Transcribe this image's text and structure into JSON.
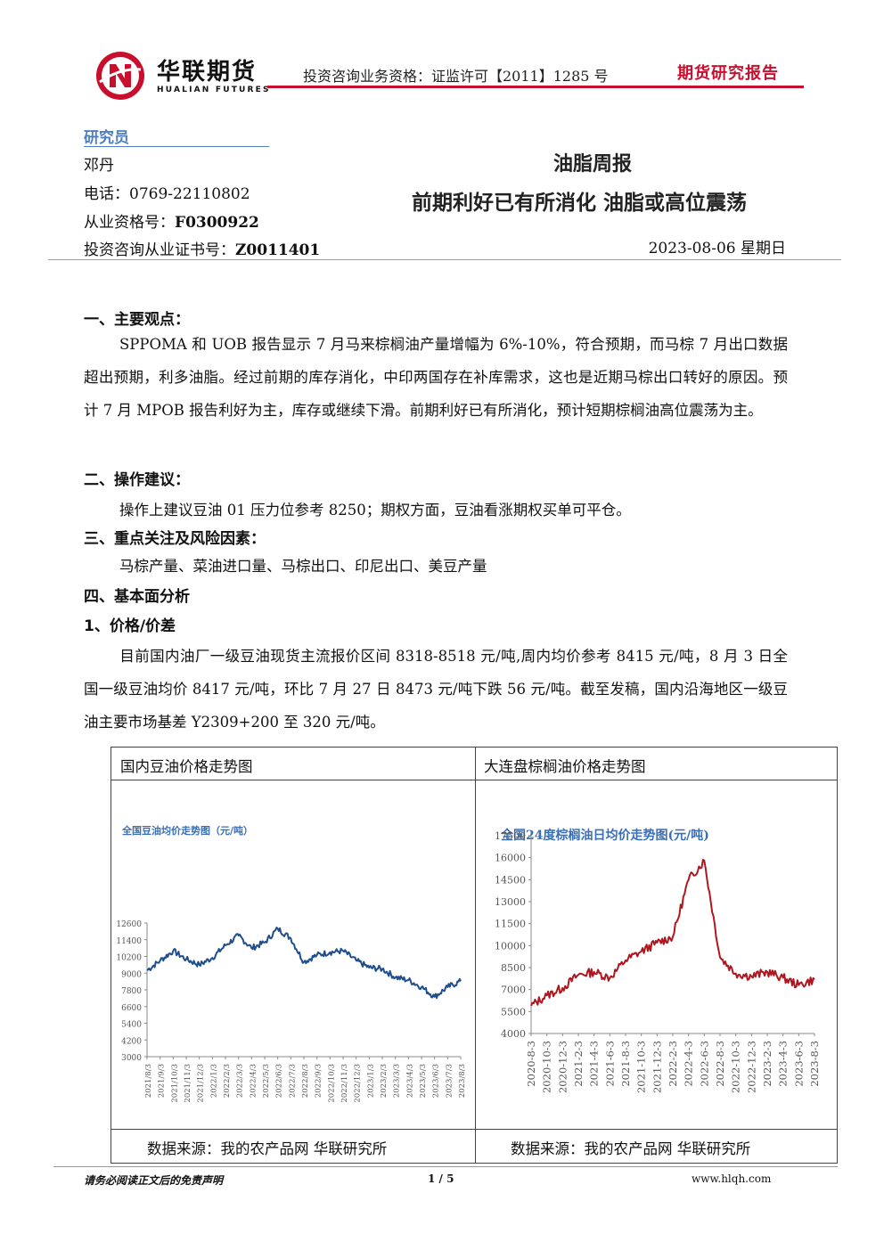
{
  "header": {
    "brand_cn": "华联期货",
    "brand_en": "HUALIAN FUTURES",
    "qualification": "投资咨询业务资格：证监许可【2011】1285 号",
    "report_type": "期货研究报告",
    "colors": {
      "accent": "#c8102e",
      "blue": "#4f7fc0"
    }
  },
  "researcher": {
    "label": "研究员",
    "name": "邓丹",
    "phone": "电话：0769-22110802",
    "license_label": "从业资格号：",
    "license_no": "F0300922",
    "advisory_label": "投资咨询从业证书号：",
    "advisory_no": "Z0011401"
  },
  "report": {
    "title": "油脂周报",
    "subtitle": "前期利好已有所消化  油脂或高位震荡",
    "date": "2023-08-06 星期日"
  },
  "sections": {
    "s1_title": "一、主要观点：",
    "s1_text": "SPPOMA 和 UOB 报告显示 7 月马来棕榈油产量增幅为 6%-10%，符合预期，而马棕 7 月出口数据超出预期，利多油脂。经过前期的库存消化，中印两国存在补库需求，这也是近期马棕出口转好的原因。预计 7 月 MPOB 报告利好为主，库存或继续下滑。前期利好已有所消化，预计短期棕榈油高位震荡为主。",
    "s2_title": "二、操作建议：",
    "s2_text": "操作上建议豆油 01 压力位参考 8250；期权方面，豆油看涨期权买单可平仓。",
    "s3_title": "三、重点关注及风险因素：",
    "s3_text": "马棕产量、菜油进口量、马棕出口、印尼出口、美豆产量",
    "s4_title": "四、基本面分析",
    "s4_sub": "1、价格/价差",
    "s4_text": "目前国内油厂一级豆油现货主流报价区间 8318-8518 元/吨,周内均价参考 8415 元/吨，8 月 3 日全国一级豆油均价 8417 元/吨，环比 7 月 27 日 8473 元/吨下跌 56 元/吨。截至发稿，国内沿海地区一级豆油主要市场基差 Y2309+200 至 320 元/吨。"
  },
  "charts": {
    "left_cell_title": "国内豆油价格走势图",
    "right_cell_title": "大连盘棕榈油价格走势图",
    "left_source": "数据来源：我的农产品网  华联研究所",
    "right_source": "数据来源：我的农产品网  华联研究所"
  },
  "chart_data": [
    {
      "type": "line",
      "title": "全国豆油均价走势图（元/吨）",
      "color": "#1f4e8c",
      "ylim": [
        3000,
        12600
      ],
      "yticks": [
        "12600",
        "11400",
        "10200",
        "9000",
        "7800",
        "6600",
        "5400",
        "4200",
        "3000"
      ],
      "xticks": [
        "2021/8/3",
        "2021/9/3",
        "2021/10/3",
        "2021/11/3",
        "2021/12/3",
        "2022/1/3",
        "2022/2/3",
        "2022/3/3",
        "2022/4/3",
        "2022/5/3",
        "2022/6/3",
        "2022/7/3",
        "2022/8/3",
        "2022/9/3",
        "2022/10/3",
        "2022/11/3",
        "2022/12/3",
        "2023/1/3",
        "2023/2/3",
        "2023/3/3",
        "2023/4/3",
        "2023/5/3",
        "2023/6/3",
        "2023/7/3",
        "2023/8/3"
      ],
      "x": [
        "2021/8/3",
        "2021/9/3",
        "2021/10/3",
        "2021/11/3",
        "2021/12/3",
        "2022/1/3",
        "2022/2/3",
        "2022/3/3",
        "2022/4/3",
        "2022/5/3",
        "2022/6/3",
        "2022/7/3",
        "2022/8/3",
        "2022/9/3",
        "2022/10/3",
        "2022/11/3",
        "2022/12/3",
        "2023/1/3",
        "2023/2/3",
        "2023/3/3",
        "2023/4/3",
        "2023/5/3",
        "2023/6/3",
        "2023/7/3",
        "2023/8/3"
      ],
      "values": [
        9200,
        9900,
        10600,
        10000,
        9600,
        10100,
        11000,
        11700,
        10800,
        11200,
        12200,
        11500,
        9800,
        10300,
        10500,
        10600,
        9900,
        9400,
        9300,
        8700,
        8500,
        8000,
        7300,
        8000,
        8417
      ]
    },
    {
      "type": "line",
      "title": "全国24度棕榈油日均价走势图(元/吨)",
      "color": "#b0161e",
      "ylim": [
        4000,
        17500
      ],
      "yticks": [
        "17500",
        "16000",
        "14500",
        "13000",
        "11500",
        "10000",
        "8500",
        "7000",
        "5500",
        "4000"
      ],
      "xticks": [
        "2020-8-3",
        "2020-10-3",
        "2020-12-3",
        "2021-2-3",
        "2021-4-3",
        "2021-6-3",
        "2021-8-3",
        "2021-10-3",
        "2021-12-3",
        "2022-2-3",
        "2022-4-3",
        "2022-6-3",
        "2022-8-3",
        "2022-10-3",
        "2022-12-3",
        "2023-2-3",
        "2023-4-3",
        "2023-6-3",
        "2023-8-3"
      ],
      "x": [
        "2020-8-3",
        "2020-10-3",
        "2020-12-3",
        "2021-2-3",
        "2021-4-3",
        "2021-6-3",
        "2021-8-3",
        "2021-10-3",
        "2021-12-3",
        "2022-2-3",
        "2022-4-3",
        "2022-6-3",
        "2022-8-3",
        "2022-10-3",
        "2022-12-3",
        "2023-2-3",
        "2023-4-3",
        "2023-6-3",
        "2023-8-3"
      ],
      "values": [
        5900,
        6600,
        7100,
        8000,
        8200,
        7800,
        9000,
        9600,
        10200,
        10600,
        14500,
        15800,
        9200,
        8100,
        7900,
        8200,
        7800,
        7300,
        7700
      ]
    }
  ],
  "footer": {
    "disclaimer": "请务必阅读正文后的免责声明",
    "page": "1 / 5",
    "url": "www.hlqh.com"
  }
}
